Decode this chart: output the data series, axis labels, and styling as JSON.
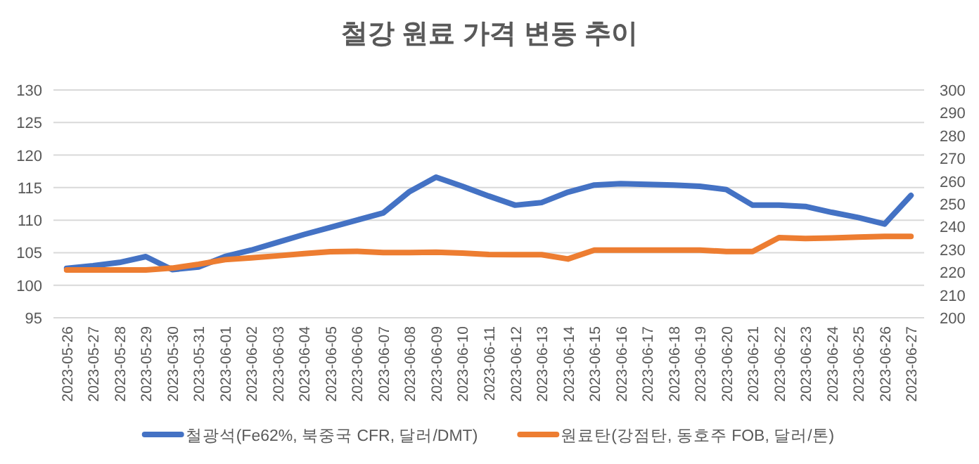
{
  "chart_data": {
    "type": "line",
    "title": "철강 원료 가격 변동 추이",
    "categories": [
      "2023-05-26",
      "2023-05-27",
      "2023-05-28",
      "2023-05-29",
      "2023-05-30",
      "2023-05-31",
      "2023-06-01",
      "2023-06-02",
      "2023-06-03",
      "2023-06-04",
      "2023-06-05",
      "2023-06-06",
      "2023-06-07",
      "2023-06-08",
      "2023-06-09",
      "2023-06-10",
      "2023-06-11",
      "2023-06-12",
      "2023-06-13",
      "2023-06-14",
      "2023-06-15",
      "2023-06-16",
      "2023-06-17",
      "2023-06-18",
      "2023-06-19",
      "2023-06-20",
      "2023-06-21",
      "2023-06-22",
      "2023-06-23",
      "2023-06-24",
      "2023-06-25",
      "2023-06-26",
      "2023-06-27"
    ],
    "series": [
      {
        "name": "철광석(Fe62%, 북중국 CFR, 달러/DMT)",
        "color": "#4472c4",
        "values": [
          102.6,
          103.0,
          103.5,
          104.4,
          102.4,
          102.8,
          104.4,
          105.4,
          106.6,
          107.8,
          108.9,
          110.0,
          111.1,
          114.4,
          116.6,
          115.2,
          113.7,
          112.3,
          112.7,
          114.3,
          115.4,
          115.6,
          115.5,
          115.4,
          115.2,
          114.7,
          112.3,
          112.3,
          112.1,
          111.2,
          110.4,
          109.4,
          113.8
        ]
      },
      {
        "name": "원료탄(강점탄, 동호주 FOB, 달러/톤)",
        "color": "#ed7d31",
        "axis": "y2",
        "values": [
          221.0,
          221.0,
          221.0,
          221.0,
          221.8,
          223.5,
          225.5,
          226.3,
          227.2,
          228.2,
          229.0,
          229.2,
          228.6,
          228.6,
          228.8,
          228.4,
          227.8,
          227.7,
          227.7,
          225.8,
          229.7,
          229.7,
          229.7,
          229.7,
          229.7,
          229.1,
          229.1,
          235.2,
          234.8,
          235.0,
          235.4,
          235.7,
          235.7
        ]
      }
    ],
    "ylim": [
      95,
      130
    ],
    "yticks": [
      95,
      100,
      105,
      110,
      115,
      120,
      125,
      130
    ],
    "y2lim": [
      200,
      300
    ],
    "y2ticks": [
      200,
      210,
      220,
      230,
      240,
      250,
      260,
      270,
      280,
      290,
      300
    ],
    "grid": "y",
    "legend": "bottom"
  }
}
